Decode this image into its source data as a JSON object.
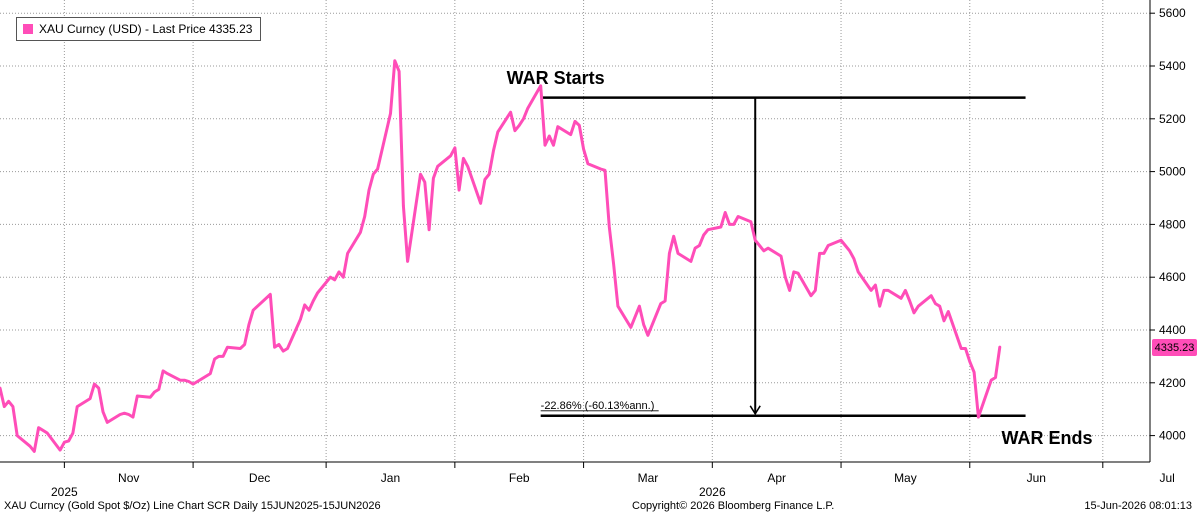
{
  "chart_data": {
    "type": "line",
    "legend": {
      "label": "XAU Curncy (USD) - Last Price 4335.23",
      "placement": "top-left"
    },
    "series": [
      {
        "name": "XAU Curncy (USD) - Last Price",
        "color": "#ff4db8",
        "points": [
          [
            "2025-09-15",
            4180
          ],
          [
            "2025-09-16",
            4110
          ],
          [
            "2025-09-17",
            4130
          ],
          [
            "2025-09-18",
            4110
          ],
          [
            "2025-09-19",
            4000
          ],
          [
            "2025-09-22",
            3960
          ],
          [
            "2025-09-23",
            3940
          ],
          [
            "2025-09-24",
            4030
          ],
          [
            "2025-09-25",
            4020
          ],
          [
            "2025-09-26",
            4010
          ],
          [
            "2025-09-29",
            3945
          ],
          [
            "2025-09-30",
            3975
          ],
          [
            "2025-10-01",
            3980
          ],
          [
            "2025-10-02",
            4010
          ],
          [
            "2025-10-03",
            4110
          ],
          [
            "2025-10-06",
            4140
          ],
          [
            "2025-10-07",
            4195
          ],
          [
            "2025-10-08",
            4180
          ],
          [
            "2025-10-09",
            4090
          ],
          [
            "2025-10-10",
            4050
          ],
          [
            "2025-10-13",
            4080
          ],
          [
            "2025-10-14",
            4085
          ],
          [
            "2025-10-15",
            4080
          ],
          [
            "2025-10-16",
            4070
          ],
          [
            "2025-10-17",
            4150
          ],
          [
            "2025-10-20",
            4145
          ],
          [
            "2025-10-21",
            4165
          ],
          [
            "2025-10-22",
            4175
          ],
          [
            "2025-10-23",
            4245
          ],
          [
            "2025-10-24",
            4235
          ],
          [
            "2025-10-27",
            4210
          ],
          [
            "2025-10-28",
            4210
          ],
          [
            "2025-10-29",
            4205
          ],
          [
            "2025-10-30",
            4195
          ],
          [
            "2025-10-31",
            4205
          ],
          [
            "2025-11-03",
            4235
          ],
          [
            "2025-11-04",
            4290
          ],
          [
            "2025-11-05",
            4300
          ],
          [
            "2025-11-06",
            4300
          ],
          [
            "2025-11-07",
            4335
          ],
          [
            "2025-11-10",
            4330
          ],
          [
            "2025-11-11",
            4345
          ],
          [
            "2025-11-12",
            4420
          ],
          [
            "2025-11-13",
            4475
          ],
          [
            "2025-11-14",
            4490
          ],
          [
            "2025-11-17",
            4535
          ],
          [
            "2025-11-18",
            4335
          ],
          [
            "2025-11-19",
            4345
          ],
          [
            "2025-11-20",
            4320
          ],
          [
            "2025-11-21",
            4330
          ],
          [
            "2025-11-24",
            4440
          ],
          [
            "2025-11-25",
            4495
          ],
          [
            "2025-11-26",
            4475
          ],
          [
            "2025-11-27",
            4510
          ],
          [
            "2025-11-28",
            4540
          ],
          [
            "2025-12-01",
            4600
          ],
          [
            "2025-12-02",
            4590
          ],
          [
            "2025-12-03",
            4620
          ],
          [
            "2025-12-04",
            4600
          ],
          [
            "2025-12-05",
            4690
          ],
          [
            "2025-12-08",
            4770
          ],
          [
            "2025-12-09",
            4830
          ],
          [
            "2025-12-10",
            4930
          ],
          [
            "2025-12-11",
            4990
          ],
          [
            "2025-12-12",
            5010
          ],
          [
            "2025-12-15",
            5220
          ],
          [
            "2025-12-16",
            5420
          ],
          [
            "2025-12-17",
            5380
          ],
          [
            "2025-12-18",
            4870
          ],
          [
            "2025-12-19",
            4660
          ],
          [
            "2025-12-22",
            4990
          ],
          [
            "2025-12-23",
            4960
          ],
          [
            "2025-12-24",
            4780
          ],
          [
            "2025-12-25",
            4975
          ],
          [
            "2025-12-26",
            5020
          ],
          [
            "2025-12-29",
            5060
          ],
          [
            "2025-12-30",
            5090
          ],
          [
            "2025-12-31",
            4930
          ],
          [
            "2026-01-01",
            5050
          ],
          [
            "2026-01-02",
            5020
          ],
          [
            "2026-01-05",
            4880
          ],
          [
            "2026-01-06",
            4970
          ],
          [
            "2026-01-07",
            4990
          ],
          [
            "2026-01-08",
            5080
          ],
          [
            "2026-01-09",
            5150
          ],
          [
            "2026-01-12",
            5225
          ],
          [
            "2026-01-13",
            5155
          ],
          [
            "2026-01-14",
            5175
          ],
          [
            "2026-01-15",
            5200
          ],
          [
            "2026-01-16",
            5240
          ],
          [
            "2026-01-19",
            5325
          ],
          [
            "2026-01-20",
            5100
          ],
          [
            "2026-01-21",
            5135
          ],
          [
            "2026-01-22",
            5100
          ],
          [
            "2026-01-23",
            5170
          ],
          [
            "2026-01-26",
            5140
          ],
          [
            "2026-01-27",
            5190
          ],
          [
            "2026-01-28",
            5175
          ],
          [
            "2026-01-29",
            5085
          ],
          [
            "2026-01-30",
            5030
          ],
          [
            "2026-02-02",
            5010
          ],
          [
            "2026-02-03",
            5005
          ],
          [
            "2026-02-04",
            4790
          ],
          [
            "2026-02-05",
            4650
          ],
          [
            "2026-02-06",
            4490
          ],
          [
            "2026-02-09",
            4410
          ],
          [
            "2026-02-10",
            4450
          ],
          [
            "2026-02-11",
            4490
          ],
          [
            "2026-02-12",
            4420
          ],
          [
            "2026-02-13",
            4380
          ],
          [
            "2026-02-16",
            4500
          ],
          [
            "2026-02-17",
            4510
          ],
          [
            "2026-02-18",
            4690
          ],
          [
            "2026-02-19",
            4755
          ],
          [
            "2026-02-20",
            4690
          ],
          [
            "2026-02-23",
            4660
          ],
          [
            "2026-02-24",
            4710
          ],
          [
            "2026-02-25",
            4720
          ],
          [
            "2026-02-26",
            4760
          ],
          [
            "2026-02-27",
            4780
          ],
          [
            "2026-03-02",
            4790
          ],
          [
            "2026-03-03",
            4845
          ],
          [
            "2026-03-04",
            4800
          ],
          [
            "2026-03-05",
            4800
          ],
          [
            "2026-03-06",
            4830
          ],
          [
            "2026-03-09",
            4810
          ],
          [
            "2026-03-10",
            4740
          ],
          [
            "2026-03-11",
            4720
          ],
          [
            "2026-03-12",
            4700
          ],
          [
            "2026-03-13",
            4710
          ],
          [
            "2026-03-16",
            4680
          ],
          [
            "2026-03-17",
            4600
          ],
          [
            "2026-03-18",
            4550
          ],
          [
            "2026-03-19",
            4620
          ],
          [
            "2026-03-20",
            4615
          ],
          [
            "2026-03-23",
            4530
          ],
          [
            "2026-03-24",
            4550
          ],
          [
            "2026-03-25",
            4690
          ],
          [
            "2026-03-26",
            4690
          ],
          [
            "2026-03-27",
            4720
          ],
          [
            "2026-03-30",
            4740
          ],
          [
            "2026-03-31",
            4720
          ],
          [
            "2026-04-01",
            4700
          ],
          [
            "2026-04-02",
            4670
          ],
          [
            "2026-04-03",
            4620
          ],
          [
            "2026-04-06",
            4550
          ],
          [
            "2026-04-07",
            4570
          ],
          [
            "2026-04-08",
            4490
          ],
          [
            "2026-04-09",
            4550
          ],
          [
            "2026-04-10",
            4550
          ],
          [
            "2026-04-13",
            4520
          ],
          [
            "2026-04-14",
            4550
          ],
          [
            "2026-04-15",
            4510
          ],
          [
            "2026-04-16",
            4465
          ],
          [
            "2026-04-17",
            4490
          ],
          [
            "2026-04-20",
            4530
          ],
          [
            "2026-04-21",
            4500
          ],
          [
            "2026-04-22",
            4490
          ],
          [
            "2026-04-23",
            4435
          ],
          [
            "2026-04-24",
            4470
          ],
          [
            "2026-04-27",
            4330
          ],
          [
            "2026-04-28",
            4330
          ],
          [
            "2026-04-29",
            4280
          ],
          [
            "2026-04-30",
            4240
          ],
          [
            "2026-05-01",
            4070
          ],
          [
            "2026-05-04",
            4210
          ],
          [
            "2026-05-05",
            4220
          ],
          [
            "2026-05-06",
            4335.23
          ]
        ]
      }
    ],
    "y_axis": {
      "side": "right",
      "range": [
        3900,
        5650
      ],
      "ticks": [
        4000,
        4200,
        4400,
        4600,
        4800,
        5000,
        5200,
        5400,
        5600
      ],
      "grid": true,
      "last_price_label": "4335.23"
    },
    "x_axis": {
      "months": [
        {
          "label": "Nov",
          "date": "2025-09-30"
        },
        {
          "label": "Dec",
          "date": "2025-10-30"
        },
        {
          "label": "Jan",
          "date": "2025-11-30"
        },
        {
          "label": "Feb",
          "date": "2025-12-30"
        },
        {
          "label": "Mar",
          "date": "2026-01-29"
        },
        {
          "label": "Apr",
          "date": "2026-02-28"
        },
        {
          "label": "May",
          "date": "2026-03-30"
        },
        {
          "label": "Jun",
          "date": "2026-04-29"
        },
        {
          "label": "Jul",
          "date": "2026-05-30"
        }
      ],
      "years": [
        {
          "label": "2025",
          "date": "2025-09-30"
        },
        {
          "label": "2026",
          "date": "2026-02-28"
        }
      ],
      "range": [
        "2025-09-15",
        "2026-06-10"
      ],
      "grid": true
    },
    "annotations": {
      "war_starts": {
        "label": "WAR Starts",
        "date_start": "2026-01-19",
        "date_end": "2026-05-12",
        "level": 5280
      },
      "war_ends": {
        "label": "WAR Ends",
        "date_start": "2026-01-19",
        "date_end": "2026-05-12",
        "level": 4075
      },
      "change": {
        "label": "-22.86% (-60.13%ann.)",
        "date": "2026-03-10"
      }
    },
    "footer": {
      "left": "XAU Curncy (Gold Spot  $/Oz) Line Chart SCR Daily 15JUN2025-15JUN2026",
      "center": "Copyright© 2026 Bloomberg Finance L.P.",
      "right": "15-Jun-2026 08:01:13"
    }
  }
}
